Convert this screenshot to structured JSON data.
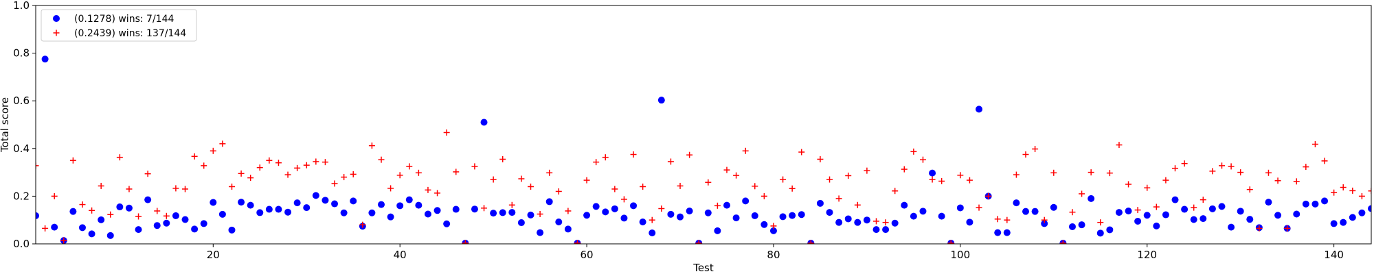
{
  "chart_data": {
    "type": "scatter",
    "xlabel": "Test",
    "ylabel": "Total score",
    "xlim": [
      1,
      144
    ],
    "ylim": [
      0,
      1.0
    ],
    "xticks": [
      20,
      40,
      60,
      80,
      100,
      120,
      140
    ],
    "yticks": [
      0.0,
      0.2,
      0.4,
      0.6,
      0.8,
      1.0
    ],
    "xtick_labels": [
      "20",
      "40",
      "60",
      "80",
      "100",
      "120",
      "140"
    ],
    "ytick_labels": [
      "0.0",
      "0.2",
      "0.4",
      "0.6",
      "0.8",
      "1.0"
    ],
    "grid": false,
    "legend_position": "top-left",
    "series": [
      {
        "name": "(0.1278) wins: 7/144",
        "marker": "circle",
        "color": "#0000ff",
        "values": [
          0.118,
          0.775,
          0.07,
          0.014,
          0.136,
          0.068,
          0.042,
          0.101,
          0.035,
          0.155,
          0.15,
          0.06,
          0.185,
          0.077,
          0.087,
          0.118,
          0.102,
          0.062,
          0.085,
          0.174,
          0.124,
          0.058,
          0.175,
          0.162,
          0.131,
          0.145,
          0.145,
          0.133,
          0.172,
          0.152,
          0.203,
          0.183,
          0.168,
          0.13,
          0.18,
          0.074,
          0.13,
          0.165,
          0.113,
          0.16,
          0.185,
          0.162,
          0.125,
          0.14,
          0.084,
          0.145,
          0.003,
          0.146,
          0.51,
          0.129,
          0.131,
          0.132,
          0.089,
          0.121,
          0.047,
          0.177,
          0.092,
          0.062,
          0.003,
          0.12,
          0.157,
          0.134,
          0.147,
          0.108,
          0.16,
          0.092,
          0.046,
          0.603,
          0.124,
          0.113,
          0.138,
          0.003,
          0.13,
          0.055,
          0.162,
          0.109,
          0.18,
          0.118,
          0.081,
          0.055,
          0.114,
          0.119,
          0.123,
          0.003,
          0.17,
          0.132,
          0.09,
          0.105,
          0.09,
          0.1,
          0.06,
          0.06,
          0.087,
          0.162,
          0.116,
          0.137,
          0.297,
          0.116,
          0.003,
          0.151,
          0.091,
          0.565,
          0.2,
          0.047,
          0.047,
          0.172,
          0.136,
          0.136,
          0.085,
          0.153,
          0.003,
          0.072,
          0.08,
          0.19,
          0.045,
          0.059,
          0.132,
          0.138,
          0.095,
          0.12,
          0.075,
          0.122,
          0.185,
          0.145,
          0.102,
          0.106,
          0.147,
          0.157,
          0.07,
          0.137,
          0.103,
          0.068,
          0.175,
          0.12,
          0.065,
          0.125,
          0.167,
          0.167,
          0.18,
          0.085,
          0.09,
          0.111,
          0.13,
          0.148
        ]
      },
      {
        "name": "(0.2439) wins: 137/144",
        "marker": "plus",
        "color": "#ff0000",
        "values": [
          0.328,
          0.065,
          0.2,
          0.014,
          0.35,
          0.165,
          0.14,
          0.243,
          0.123,
          0.363,
          0.23,
          0.115,
          0.294,
          0.138,
          0.117,
          0.233,
          0.23,
          0.367,
          0.328,
          0.39,
          0.42,
          0.24,
          0.295,
          0.277,
          0.32,
          0.35,
          0.34,
          0.29,
          0.318,
          0.33,
          0.345,
          0.343,
          0.253,
          0.28,
          0.292,
          0.08,
          0.412,
          0.353,
          0.233,
          0.288,
          0.325,
          0.298,
          0.226,
          0.213,
          0.467,
          0.302,
          0.003,
          0.325,
          0.15,
          0.27,
          0.355,
          0.163,
          0.273,
          0.24,
          0.125,
          0.298,
          0.22,
          0.138,
          0.003,
          0.267,
          0.343,
          0.363,
          0.23,
          0.187,
          0.375,
          0.24,
          0.1,
          0.148,
          0.345,
          0.243,
          0.373,
          0.003,
          0.258,
          0.16,
          0.31,
          0.287,
          0.39,
          0.242,
          0.2,
          0.075,
          0.27,
          0.232,
          0.385,
          0.003,
          0.355,
          0.27,
          0.19,
          0.286,
          0.163,
          0.307,
          0.095,
          0.09,
          0.222,
          0.313,
          0.387,
          0.353,
          0.27,
          0.263,
          0.003,
          0.288,
          0.267,
          0.152,
          0.2,
          0.104,
          0.1,
          0.29,
          0.375,
          0.398,
          0.1,
          0.298,
          0.003,
          0.133,
          0.21,
          0.3,
          0.09,
          0.297,
          0.415,
          0.25,
          0.142,
          0.235,
          0.155,
          0.267,
          0.317,
          0.337,
          0.152,
          0.185,
          0.305,
          0.328,
          0.325,
          0.3,
          0.228,
          0.065,
          0.298,
          0.265,
          0.065,
          0.262,
          0.323,
          0.418,
          0.348,
          0.215,
          0.237,
          0.223,
          0.2,
          0.222
        ]
      }
    ]
  }
}
